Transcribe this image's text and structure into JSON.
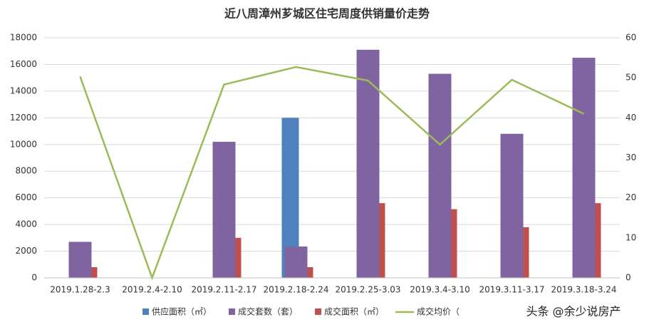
{
  "chart_data": {
    "type": "bar",
    "title": "近八周漳州芗城区住宅周度供销量价走势",
    "categories": [
      "2019.1.28-2.3",
      "2019.2.4-2.10",
      "2019.2.11-2.17",
      "2019.2.18-2.24",
      "2019.2.25-3.03",
      "2019.3.4-3.10",
      "2019.3.11-3.17",
      "2019.3.18-3.24"
    ],
    "series": [
      {
        "name": "供应面积（㎡）",
        "color": "#4f81bd",
        "type": "bar",
        "values": [
          0,
          0,
          0,
          12000,
          0,
          0,
          0,
          0
        ]
      },
      {
        "name": "成交套数（套）",
        "color": "#8064a2",
        "type": "bar",
        "values": [
          2700,
          0,
          10200,
          2350,
          17100,
          15300,
          10800,
          16500
        ]
      },
      {
        "name": "成交面积（㎡）",
        "color": "#c0504d",
        "type": "bar",
        "values": [
          800,
          0,
          3000,
          800,
          5600,
          5150,
          3800,
          5600
        ]
      },
      {
        "name": "成交均价（",
        "color": "#9bbb59",
        "type": "line",
        "axis": "y2",
        "values": [
          50.3,
          0,
          48.3,
          52.7,
          49.3,
          33.3,
          49.5,
          41
        ]
      }
    ],
    "ylim": [
      0,
      18000
    ],
    "yticks": [
      0,
      2000,
      4000,
      6000,
      8000,
      10000,
      12000,
      14000,
      16000,
      18000
    ],
    "y2lim": [
      0,
      60
    ],
    "y2ticks": [
      0,
      10,
      20,
      30,
      40,
      50,
      60
    ],
    "grid": true,
    "legend": "bottom",
    "annotation": "头条 @余少说房产"
  }
}
